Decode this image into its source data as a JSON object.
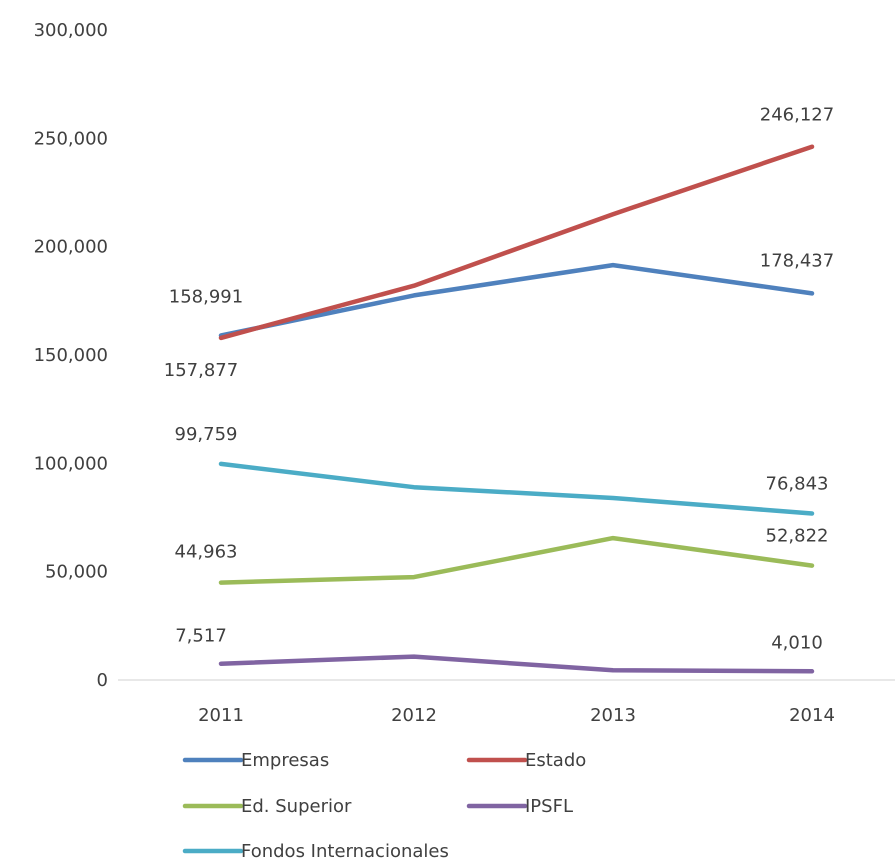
{
  "chart_data": {
    "type": "line",
    "title": "",
    "xlabel": "",
    "ylabel": "",
    "categories": [
      "2011",
      "2012",
      "2013",
      "2014"
    ],
    "ylim": [
      0,
      300000
    ],
    "yticks": [
      0,
      50000,
      100000,
      150000,
      200000,
      250000,
      300000
    ],
    "ytick_labels": [
      "0",
      "50,000",
      "100,000",
      "150,000",
      "200,000",
      "250,000",
      "300,000"
    ],
    "grid": false,
    "legend_position": "bottom",
    "series": [
      {
        "name": "Empresas",
        "color": "#4F81BD",
        "values": [
          158991,
          177500,
          191500,
          178437
        ],
        "data_labels": [
          {
            "index": 0,
            "text": "158,991"
          },
          {
            "index": 3,
            "text": "178,437"
          }
        ]
      },
      {
        "name": "Estado",
        "color": "#C0504D",
        "values": [
          157877,
          182000,
          215000,
          246127
        ],
        "data_labels": [
          {
            "index": 0,
            "text": "157,877"
          },
          {
            "index": 3,
            "text": "246,127"
          }
        ]
      },
      {
        "name": "Ed. Superior",
        "color": "#9BBB59",
        "values": [
          44963,
          47500,
          65500,
          52822
        ],
        "data_labels": [
          {
            "index": 0,
            "text": "44,963"
          },
          {
            "index": 3,
            "text": "52,822"
          }
        ]
      },
      {
        "name": "IPSFL",
        "color": "#8064A2",
        "values": [
          7517,
          10800,
          4500,
          4010
        ],
        "data_labels": [
          {
            "index": 0,
            "text": "7,517"
          },
          {
            "index": 3,
            "text": "4,010"
          }
        ]
      },
      {
        "name": "Fondos Internacionales",
        "color": "#4BACC6",
        "values": [
          99759,
          89000,
          84000,
          76843
        ],
        "data_labels": [
          {
            "index": 0,
            "text": "99,759"
          },
          {
            "index": 3,
            "text": "76,843"
          }
        ]
      }
    ]
  }
}
